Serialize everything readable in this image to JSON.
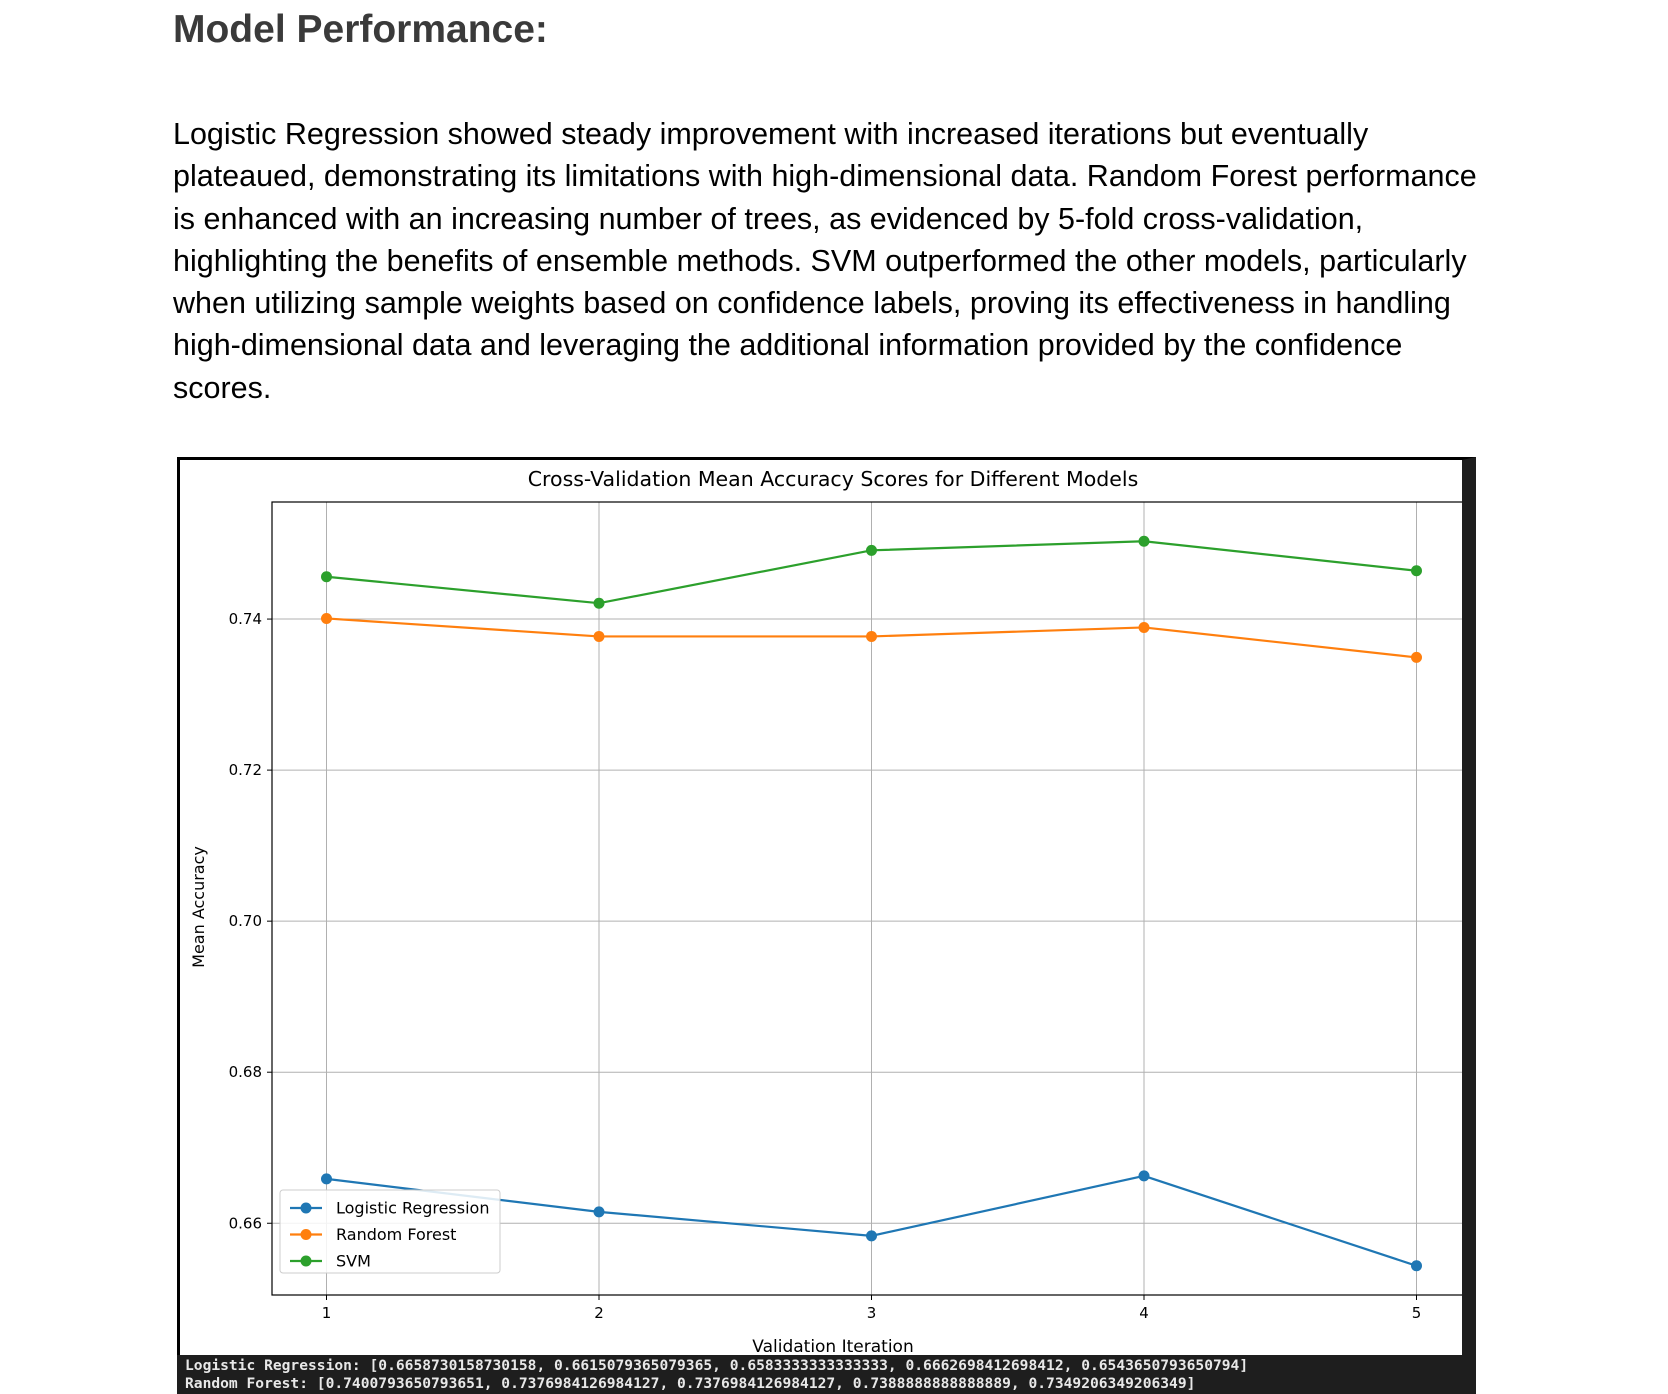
{
  "page": {
    "section_title": "Model Performance:",
    "paragraph": "Logistic Regression showed steady improvement with increased iterations but eventually plateaued, demonstrating its limitations with high-dimensional data. Random Forest performance is enhanced with an increasing number of trees, as evidenced by 5-fold cross-validation, highlighting the benefits of ensemble methods. SVM outperformed the other models, particularly when utilizing sample weights based on confidence labels, proving its effectiveness in handling high-dimensional data and leveraging the additional information provided by the confidence scores."
  },
  "chart_data": {
    "type": "line",
    "title": "Cross-Validation Mean Accuracy Scores for Different Models",
    "xlabel": "Validation Iteration",
    "ylabel": "Mean Accuracy",
    "x": [
      1,
      2,
      3,
      4,
      5
    ],
    "x_ticks": [
      "1",
      "2",
      "3",
      "4",
      "5"
    ],
    "y_ticks": [
      "0.66",
      "0.68",
      "0.70",
      "0.72",
      "0.74"
    ],
    "xlim": [
      0.8,
      5.2
    ],
    "ylim": [
      0.6505,
      0.7555
    ],
    "grid": true,
    "legend_position": "lower-left",
    "marker": "circle",
    "series": [
      {
        "name": "Logistic Regression",
        "color": "#1f77b4",
        "values": [
          0.6658730158730158,
          0.6615079365079365,
          0.6583333333333333,
          0.6662698412698412,
          0.6543650793650794
        ]
      },
      {
        "name": "Random Forest",
        "color": "#ff7f0e",
        "values": [
          0.7400793650793651,
          0.7376984126984127,
          0.7376984126984127,
          0.7388888888888889,
          0.7349206349206349
        ]
      },
      {
        "name": "SVM",
        "color": "#2ca02c",
        "values": [
          0.7456,
          0.7421,
          0.7491,
          0.7503,
          0.7464
        ]
      }
    ]
  },
  "console": {
    "line1": "Logistic Regression: [0.6658730158730158, 0.6615079365079365, 0.6583333333333333, 0.6662698412698412, 0.6543650793650794]",
    "line2": "Random Forest: [0.7400793650793651, 0.7376984126984127, 0.7376984126984127, 0.7388888888888889, 0.7349206349206349]"
  }
}
